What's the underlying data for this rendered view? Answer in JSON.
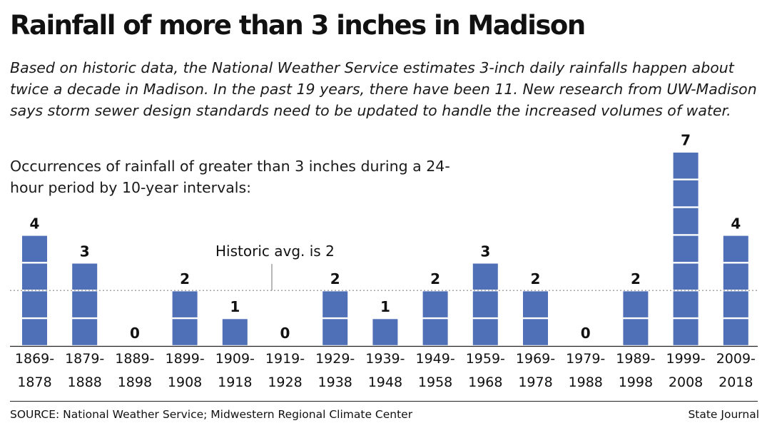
{
  "title": "Rainfall of more than 3 inches in Madison",
  "intro": "Based on historic data, the National Weather Service estimates 3-inch daily rainfalls happen about twice a decade in Madison. In the past 19 years, there have been 11. New research from UW-Madison says storm sewer design standards need to be updated to handle the increased volumes of water.",
  "subtitle": "Occurrences of rainfall of greater than 3 inches during a 24-hour period by 10-year intervals:",
  "source": "SOURCE: National Weather Service; Midwestern Regional Climate Center",
  "credit": "State Journal",
  "colors": {
    "bar": "#4f6fb6",
    "text": "#111111",
    "avg_line": "#888888"
  },
  "chart_data": {
    "type": "bar",
    "title": "Rainfall of more than 3 inches in Madison",
    "xlabel": "",
    "ylabel": "",
    "categories": [
      [
        "1869-",
        "1878"
      ],
      [
        "1879-",
        "1888"
      ],
      [
        "1889-",
        "1898"
      ],
      [
        "1899-",
        "1908"
      ],
      [
        "1909-",
        "1918"
      ],
      [
        "1919-",
        "1928"
      ],
      [
        "1929-",
        "1938"
      ],
      [
        "1939-",
        "1948"
      ],
      [
        "1949-",
        "1958"
      ],
      [
        "1959-",
        "1968"
      ],
      [
        "1969-",
        "1978"
      ],
      [
        "1979-",
        "1988"
      ],
      [
        "1989-",
        "1998"
      ],
      [
        "1999-",
        "2008"
      ],
      [
        "2009-",
        "2018"
      ]
    ],
    "values": [
      4,
      3,
      0,
      2,
      1,
      0,
      2,
      1,
      2,
      3,
      2,
      0,
      2,
      7,
      4
    ],
    "ylim": [
      0,
      7
    ],
    "grid": false,
    "reference_line": {
      "value": 2,
      "label": "Historic avg. is 2"
    }
  }
}
